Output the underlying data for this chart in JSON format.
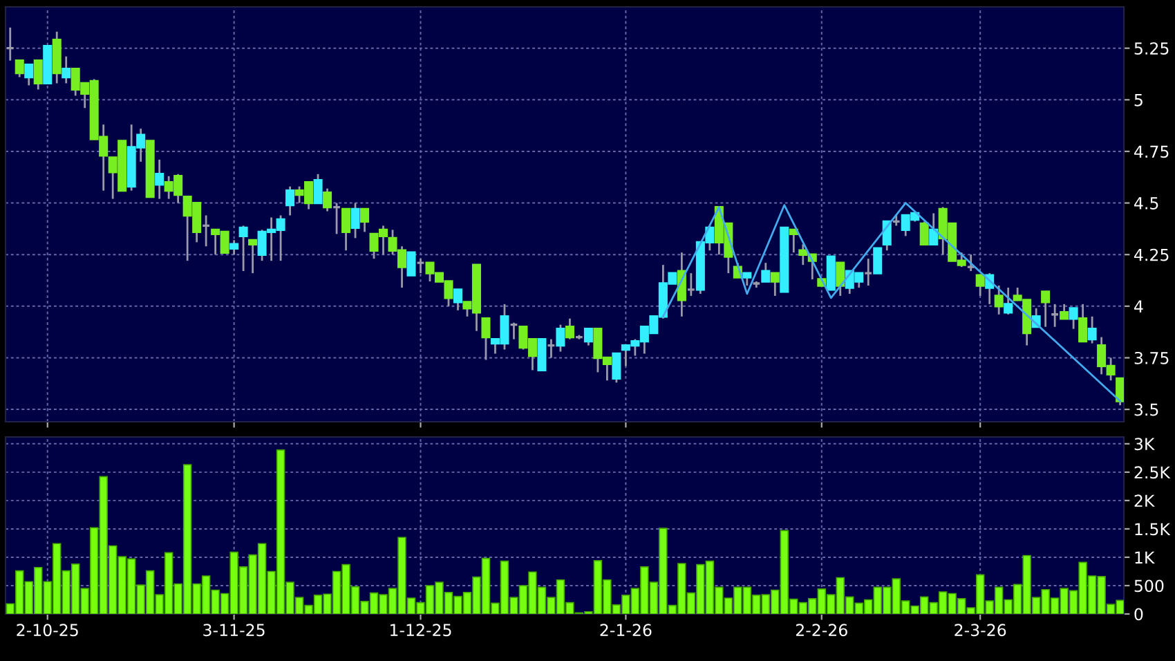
{
  "chart_data": [
    {
      "type": "candlestick",
      "grid": true,
      "tick_labels": "y",
      "ylim": [
        3.44,
        5.45
      ],
      "yticks": [
        3.5,
        3.75,
        4,
        4.25,
        4.5,
        4.75,
        5,
        5.25
      ],
      "categories": [
        null,
        null,
        null,
        null,
        null,
        null,
        null,
        null,
        null,
        null,
        null,
        null,
        null,
        null,
        null,
        null,
        null,
        null,
        null,
        null,
        null,
        null,
        null,
        null,
        null,
        null,
        null,
        null,
        null,
        null,
        null,
        null,
        null,
        null,
        null,
        null,
        null,
        null,
        null,
        null,
        null,
        null,
        null,
        null,
        null,
        null,
        null,
        null,
        null,
        null,
        null,
        null,
        null,
        null,
        null,
        null,
        null,
        null,
        null,
        null,
        null,
        null,
        null,
        null,
        null,
        null,
        null,
        null,
        null,
        null,
        null,
        null,
        null,
        null,
        null,
        null,
        null,
        null,
        null,
        null,
        null,
        null,
        null,
        null,
        null,
        null,
        null,
        null,
        null,
        null,
        null,
        null,
        null,
        null,
        null,
        null,
        null,
        null,
        null,
        null,
        null,
        null,
        null,
        null,
        null,
        null,
        null,
        null,
        null,
        null,
        null,
        null,
        null,
        null,
        null,
        null,
        null,
        null,
        null,
        null
      ],
      "ohlc": [
        [
          5.25,
          5.35,
          5.19,
          5.25
        ],
        [
          5.19,
          5.19,
          5.11,
          5.13
        ],
        [
          5.11,
          5.17,
          5.07,
          5.17
        ],
        [
          5.19,
          5.19,
          5.05,
          5.08
        ],
        [
          5.08,
          5.26,
          5.08,
          5.26
        ],
        [
          5.29,
          5.33,
          5.08,
          5.13
        ],
        [
          5.11,
          5.21,
          5.08,
          5.15
        ],
        [
          5.15,
          5.15,
          5.02,
          5.05
        ],
        [
          5.08,
          5.08,
          4.96,
          5.03
        ],
        [
          5.09,
          5.1,
          4.81,
          4.81
        ],
        [
          4.82,
          4.88,
          4.56,
          4.73
        ],
        [
          4.72,
          4.72,
          4.52,
          4.65
        ],
        [
          4.8,
          4.8,
          4.56,
          4.56
        ],
        [
          4.58,
          4.88,
          4.56,
          4.77
        ],
        [
          4.77,
          4.86,
          4.7,
          4.83
        ],
        [
          4.8,
          4.8,
          4.53,
          4.53
        ],
        [
          4.59,
          4.71,
          4.52,
          4.64
        ],
        [
          4.6,
          4.63,
          4.52,
          4.56
        ],
        [
          4.63,
          4.64,
          4.5,
          4.54
        ],
        [
          4.53,
          4.53,
          4.22,
          4.44
        ],
        [
          4.5,
          4.5,
          4.31,
          4.36
        ],
        [
          4.39,
          4.44,
          4.29,
          4.39
        ],
        [
          4.37,
          4.37,
          4.25,
          4.35
        ],
        [
          4.36,
          4.36,
          4.26,
          4.26
        ],
        [
          4.28,
          4.32,
          4.25,
          4.3
        ],
        [
          4.34,
          4.39,
          4.17,
          4.38
        ],
        [
          4.32,
          4.32,
          4.16,
          4.3
        ],
        [
          4.25,
          4.37,
          4.22,
          4.36
        ],
        [
          4.36,
          4.43,
          4.22,
          4.37
        ],
        [
          4.37,
          4.44,
          4.22,
          4.42
        ],
        [
          4.49,
          4.58,
          4.44,
          4.56
        ],
        [
          4.56,
          4.58,
          4.5,
          4.54
        ],
        [
          4.6,
          4.6,
          4.47,
          4.5
        ],
        [
          4.5,
          4.64,
          4.5,
          4.61
        ],
        [
          4.55,
          4.57,
          4.46,
          4.48
        ],
        [
          4.48,
          4.5,
          4.35,
          4.48
        ],
        [
          4.47,
          4.47,
          4.27,
          4.36
        ],
        [
          4.38,
          4.5,
          4.33,
          4.47
        ],
        [
          4.47,
          4.47,
          4.36,
          4.41
        ],
        [
          4.35,
          4.35,
          4.23,
          4.27
        ],
        [
          4.37,
          4.39,
          4.25,
          4.34
        ],
        [
          4.33,
          4.37,
          4.25,
          4.27
        ],
        [
          4.27,
          4.29,
          4.09,
          4.19
        ],
        [
          4.15,
          4.26,
          4.15,
          4.26
        ],
        [
          4.21,
          4.23,
          4.16,
          4.21
        ],
        [
          4.21,
          4.21,
          4.12,
          4.16
        ],
        [
          4.16,
          4.16,
          4.12,
          4.12
        ],
        [
          4.12,
          4.12,
          4.0,
          4.04
        ],
        [
          4.02,
          4.08,
          3.98,
          4.08
        ],
        [
          4.02,
          4.02,
          3.95,
          3.99
        ],
        [
          4.2,
          4.2,
          3.88,
          3.97
        ],
        [
          3.94,
          3.94,
          3.74,
          3.85
        ],
        [
          3.82,
          3.84,
          3.77,
          3.84
        ],
        [
          3.82,
          4.01,
          3.79,
          3.95
        ],
        [
          3.91,
          3.92,
          3.84,
          3.91
        ],
        [
          3.9,
          3.9,
          3.79,
          3.8
        ],
        [
          3.84,
          3.84,
          3.69,
          3.76
        ],
        [
          3.69,
          3.84,
          3.69,
          3.84
        ],
        [
          3.81,
          3.84,
          3.75,
          3.81
        ],
        [
          3.81,
          3.91,
          3.78,
          3.89
        ],
        [
          3.9,
          3.94,
          3.84,
          3.85
        ],
        [
          3.85,
          3.86,
          3.84,
          3.85
        ],
        [
          3.83,
          3.89,
          3.81,
          3.89
        ],
        [
          3.89,
          3.89,
          3.68,
          3.75
        ],
        [
          3.75,
          3.75,
          3.64,
          3.72
        ],
        [
          3.65,
          3.77,
          3.63,
          3.77
        ],
        [
          3.79,
          3.81,
          3.71,
          3.81
        ],
        [
          3.81,
          3.84,
          3.76,
          3.83
        ],
        [
          3.83,
          3.9,
          3.77,
          3.9
        ],
        [
          3.87,
          3.95,
          3.87,
          3.95
        ],
        [
          3.95,
          4.2,
          3.94,
          4.11
        ],
        [
          4.11,
          4.16,
          4.11,
          4.16
        ],
        [
          4.17,
          4.26,
          3.95,
          4.03
        ],
        [
          4.08,
          4.16,
          4.05,
          4.08
        ],
        [
          4.08,
          4.31,
          4.06,
          4.31
        ],
        [
          4.31,
          4.39,
          4.27,
          4.38
        ],
        [
          4.48,
          4.48,
          4.25,
          4.31
        ],
        [
          4.4,
          4.4,
          4.16,
          4.24
        ],
        [
          4.19,
          4.21,
          4.14,
          4.14
        ],
        [
          4.14,
          4.16,
          4.1,
          4.16
        ],
        [
          4.11,
          4.12,
          4.09,
          4.11
        ],
        [
          4.12,
          4.21,
          4.12,
          4.17
        ],
        [
          4.16,
          4.16,
          4.05,
          4.12
        ],
        [
          4.07,
          4.38,
          4.07,
          4.38
        ],
        [
          4.37,
          4.37,
          4.26,
          4.35
        ],
        [
          4.27,
          4.3,
          4.2,
          4.25
        ],
        [
          4.25,
          4.25,
          4.13,
          4.22
        ],
        [
          4.13,
          4.13,
          4.1,
          4.1
        ],
        [
          4.08,
          4.24,
          4.08,
          4.24
        ],
        [
          4.21,
          4.21,
          4.05,
          4.1
        ],
        [
          4.09,
          4.17,
          4.06,
          4.17
        ],
        [
          4.12,
          4.16,
          4.09,
          4.16
        ],
        [
          4.16,
          4.23,
          4.1,
          4.16
        ],
        [
          4.16,
          4.28,
          4.16,
          4.28
        ],
        [
          4.3,
          4.41,
          4.27,
          4.41
        ],
        [
          4.41,
          4.44,
          4.39,
          4.41
        ],
        [
          4.37,
          4.44,
          4.34,
          4.44
        ],
        [
          4.42,
          4.45,
          4.41,
          4.45
        ],
        [
          4.4,
          4.41,
          4.3,
          4.3
        ],
        [
          4.3,
          4.45,
          4.3,
          4.37
        ],
        [
          4.47,
          4.48,
          4.25,
          4.33
        ],
        [
          4.4,
          4.4,
          4.22,
          4.22
        ],
        [
          4.22,
          4.26,
          4.19,
          4.2
        ],
        [
          4.19,
          4.25,
          4.17,
          4.19
        ],
        [
          4.15,
          4.15,
          4.05,
          4.1
        ],
        [
          4.09,
          4.16,
          4.01,
          4.15
        ],
        [
          4.05,
          4.1,
          3.96,
          4.0
        ],
        [
          3.97,
          4.09,
          3.96,
          4.01
        ],
        [
          4.05,
          4.09,
          4.03,
          4.03
        ],
        [
          4.03,
          4.03,
          3.81,
          3.87
        ],
        [
          3.9,
          3.99,
          3.9,
          3.95
        ],
        [
          4.07,
          4.07,
          3.9,
          4.02
        ],
        [
          3.96,
          4.01,
          3.9,
          3.96
        ],
        [
          3.97,
          4.01,
          3.94,
          3.94
        ],
        [
          3.94,
          3.99,
          3.89,
          3.99
        ],
        [
          3.94,
          4.01,
          3.83,
          3.83
        ],
        [
          3.84,
          3.95,
          3.82,
          3.89
        ],
        [
          3.81,
          3.85,
          3.67,
          3.71
        ],
        [
          3.71,
          3.75,
          3.64,
          3.67
        ],
        [
          3.65,
          3.65,
          3.52,
          3.54
        ]
      ],
      "colors": [
        "#9a9aaa",
        "#77ee22",
        "#33eeff",
        "#77ee22",
        "#33eeff",
        "#77ee22",
        "#33eeff",
        "#77ee22",
        "#77ee22",
        "#77ee22",
        "#77ee22",
        "#77ee22",
        "#77ee22",
        "#33eeff",
        "#33eeff",
        "#77ee22",
        "#33eeff",
        "#77ee22",
        "#77ee22",
        "#77ee22",
        "#77ee22",
        "#9a9aaa",
        "#77ee22",
        "#77ee22",
        "#33eeff",
        "#33eeff",
        "#77ee22",
        "#33eeff",
        "#33eeff",
        "#33eeff",
        "#33eeff",
        "#77ee22",
        "#77ee22",
        "#33eeff",
        "#77ee22",
        "#9a9aaa",
        "#77ee22",
        "#33eeff",
        "#77ee22",
        "#77ee22",
        "#77ee22",
        "#77ee22",
        "#77ee22",
        "#33eeff",
        "#9a9aaa",
        "#77ee22",
        "#77ee22",
        "#77ee22",
        "#33eeff",
        "#77ee22",
        "#77ee22",
        "#77ee22",
        "#33eeff",
        "#33eeff",
        "#9a9aaa",
        "#77ee22",
        "#77ee22",
        "#33eeff",
        "#9a9aaa",
        "#33eeff",
        "#77ee22",
        "#9a9aaa",
        "#33eeff",
        "#77ee22",
        "#77ee22",
        "#33eeff",
        "#33eeff",
        "#33eeff",
        "#33eeff",
        "#33eeff",
        "#33eeff",
        "#33eeff",
        "#77ee22",
        "#9a9aaa",
        "#33eeff",
        "#33eeff",
        "#77ee22",
        "#77ee22",
        "#77ee22",
        "#33eeff",
        "#9a9aaa",
        "#33eeff",
        "#77ee22",
        "#33eeff",
        "#77ee22",
        "#77ee22",
        "#77ee22",
        "#77ee22",
        "#33eeff",
        "#77ee22",
        "#33eeff",
        "#33eeff",
        "#9a9aaa",
        "#33eeff",
        "#33eeff",
        "#9a9aaa",
        "#33eeff",
        "#33eeff",
        "#77ee22",
        "#33eeff",
        "#77ee22",
        "#77ee22",
        "#77ee22",
        "#9a9aaa",
        "#77ee22",
        "#33eeff",
        "#77ee22",
        "#33eeff",
        "#77ee22",
        "#77ee22",
        "#33eeff",
        "#77ee22",
        "#9a9aaa",
        "#77ee22",
        "#33eeff",
        "#77ee22",
        "#33eeff",
        "#77ee22",
        "#77ee22",
        "#77ee22"
      ],
      "series": [
        {
          "type": "line",
          "color": "#44aaee",
          "values": [
            null,
            null,
            null,
            null,
            null,
            null,
            null,
            null,
            null,
            null,
            null,
            null,
            null,
            null,
            null,
            null,
            null,
            null,
            null,
            null,
            null,
            null,
            null,
            null,
            null,
            null,
            null,
            null,
            null,
            null,
            null,
            null,
            null,
            null,
            null,
            null,
            null,
            null,
            null,
            null,
            null,
            null,
            null,
            null,
            null,
            null,
            null,
            null,
            null,
            null,
            null,
            null,
            null,
            null,
            null,
            null,
            null,
            null,
            null,
            null,
            null,
            null,
            null,
            null,
            null,
            null,
            null,
            null,
            null,
            null,
            3.95,
            null,
            null,
            null,
            null,
            null,
            4.48,
            null,
            null,
            4.06,
            null,
            null,
            null,
            4.49,
            null,
            null,
            null,
            null,
            4.04,
            null,
            null,
            null,
            null,
            null,
            null,
            null,
            4.5,
            null,
            null,
            null,
            null,
            null,
            null,
            null,
            null,
            null,
            null,
            null,
            null,
            null,
            null,
            null,
            null,
            null,
            null,
            null,
            null,
            null,
            null,
            3.54
          ]
        }
      ]
    },
    {
      "type": "bar",
      "color": "#77ff11",
      "grid": true,
      "ylim": [
        0,
        3120
      ],
      "yticks": [
        0,
        500,
        {
          "value": 1000,
          "label": "1K"
        },
        {
          "value": 1500,
          "label": "1.5K"
        },
        {
          "value": 2000,
          "label": "2K"
        },
        {
          "value": 2500,
          "label": "2.5K"
        },
        {
          "value": 3000,
          "label": "3K"
        }
      ],
      "categories": [
        null,
        null,
        null,
        null,
        "2-10-25",
        null,
        null,
        null,
        null,
        null,
        null,
        null,
        null,
        null,
        null,
        null,
        null,
        null,
        null,
        null,
        null,
        null,
        null,
        null,
        "3-11-25",
        null,
        null,
        null,
        null,
        null,
        null,
        null,
        null,
        null,
        null,
        null,
        null,
        null,
        null,
        null,
        null,
        null,
        null,
        null,
        "1-12-25",
        null,
        null,
        null,
        null,
        null,
        null,
        null,
        null,
        null,
        null,
        null,
        null,
        null,
        null,
        null,
        null,
        null,
        null,
        null,
        null,
        null,
        "2-1-26",
        null,
        null,
        null,
        null,
        null,
        null,
        null,
        null,
        null,
        null,
        null,
        null,
        null,
        null,
        null,
        null,
        null,
        null,
        null,
        null,
        "2-2-26",
        null,
        null,
        null,
        null,
        null,
        null,
        null,
        null,
        null,
        null,
        null,
        null,
        null,
        null,
        null,
        null,
        "2-3-26",
        null,
        null,
        null,
        null,
        null,
        null,
        null,
        null,
        null,
        null,
        null,
        null,
        null,
        null,
        null
      ],
      "values": [
        180,
        760,
        570,
        820,
        570,
        1240,
        760,
        880,
        450,
        1520,
        2420,
        1200,
        1010,
        970,
        510,
        760,
        340,
        1080,
        530,
        2630,
        530,
        670,
        420,
        360,
        1090,
        830,
        1040,
        1240,
        750,
        2890,
        560,
        290,
        150,
        330,
        350,
        750,
        870,
        480,
        220,
        370,
        340,
        450,
        1350,
        280,
        200,
        500,
        560,
        380,
        310,
        380,
        650,
        980,
        190,
        930,
        290,
        500,
        740,
        470,
        290,
        600,
        200,
        20,
        40,
        940,
        600,
        160,
        330,
        450,
        830,
        560,
        1510,
        150,
        890,
        370,
        870,
        930,
        470,
        280,
        470,
        470,
        330,
        340,
        420,
        1470,
        260,
        200,
        270,
        440,
        340,
        640,
        300,
        190,
        250,
        470,
        470,
        620,
        230,
        140,
        300,
        200,
        390,
        360,
        270,
        110,
        690,
        230,
        470,
        250,
        520,
        1030,
        290,
        430,
        280,
        450,
        410,
        910,
        670,
        660,
        170,
        240
      ]
    }
  ]
}
